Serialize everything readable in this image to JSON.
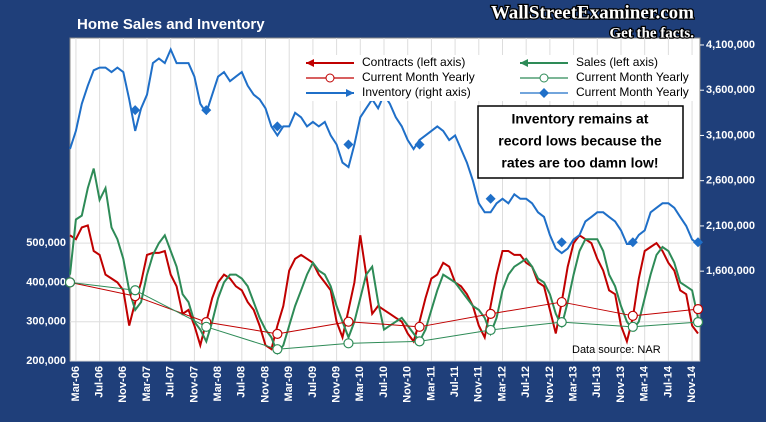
{
  "chart_data": {
    "type": "line",
    "title": "Home Sales and Inventory",
    "watermark": [
      "WallStreetExaminer.com",
      "Get the facts."
    ],
    "annotation": [
      "Inventory remains at",
      "record lows because the",
      "rates are too damn low!"
    ],
    "source": "Data source: NAR",
    "categories": [
      null,
      "Mar-06",
      null,
      null,
      null,
      "Jul-06",
      null,
      null,
      null,
      "Nov-06",
      null,
      null,
      null,
      "Mar-07",
      null,
      null,
      null,
      "Jul-07",
      null,
      null,
      null,
      "Nov-07",
      null,
      null,
      null,
      "Mar-08",
      null,
      null,
      null,
      "Jul-08",
      null,
      null,
      null,
      "Nov-08",
      null,
      null,
      null,
      "Mar-09",
      null,
      null,
      null,
      "Jul-09",
      null,
      null,
      null,
      "Nov-09",
      null,
      null,
      null,
      "Mar-10",
      null,
      null,
      null,
      "Jul-10",
      null,
      null,
      null,
      "Nov-10",
      null,
      null,
      null,
      "Mar-11",
      null,
      null,
      null,
      "Jul-11",
      null,
      null,
      null,
      "Nov-11",
      null,
      null,
      null,
      "Mar-12",
      null,
      null,
      null,
      "Jul-12",
      null,
      null,
      null,
      "Nov-12",
      null,
      null,
      null,
      "Mar-13",
      null,
      null,
      null,
      "Jul-13",
      null,
      null,
      null,
      "Nov-13",
      null,
      null,
      null,
      "Mar-14",
      null,
      null,
      null,
      "Jul-14",
      null,
      null,
      null,
      "Nov-14",
      null
    ],
    "ylim": [
      200000,
      1022000
    ],
    "yticks": [
      {
        "value": 200000,
        "label": "200,000"
      },
      {
        "value": 300000,
        "label": "300,000"
      },
      {
        "value": 400000,
        "label": "400,000"
      },
      {
        "value": 500000,
        "label": "500,000"
      }
    ],
    "y2lim": [
      607000,
      4177000
    ],
    "y2ticks": [
      {
        "value": 1600000,
        "label": "1,600,000"
      },
      {
        "value": 2100000,
        "label": "2,100,000"
      },
      {
        "value": 2600000,
        "label": "2,600,000"
      },
      {
        "value": 3100000,
        "label": "3,100,000"
      },
      {
        "value": 3600000,
        "label": "3,600,000"
      },
      {
        "value": 4100000,
        "label": "4,100,000"
      }
    ],
    "grid": true,
    "legend": "top-right",
    "series": [
      {
        "name": "Contracts (left axis)",
        "color": "#c00000",
        "axis": "y",
        "values": [
          520000,
          510000,
          540000,
          545000,
          480000,
          470000,
          420000,
          410000,
          400000,
          380000,
          290000,
          350000,
          400000,
          470000,
          475000,
          475000,
          480000,
          420000,
          390000,
          320000,
          330000,
          290000,
          240000,
          300000,
          360000,
          400000,
          420000,
          410000,
          390000,
          380000,
          350000,
          330000,
          290000,
          240000,
          230000,
          290000,
          340000,
          430000,
          460000,
          470000,
          460000,
          450000,
          420000,
          400000,
          380000,
          300000,
          260000,
          330000,
          400000,
          520000,
          420000,
          320000,
          340000,
          330000,
          320000,
          310000,
          300000,
          270000,
          250000,
          300000,
          360000,
          410000,
          420000,
          450000,
          440000,
          400000,
          390000,
          370000,
          340000,
          290000,
          260000,
          340000,
          420000,
          480000,
          480000,
          470000,
          470000,
          450000,
          440000,
          400000,
          390000,
          330000,
          270000,
          350000,
          440000,
          500000,
          520000,
          510000,
          500000,
          460000,
          430000,
          380000,
          370000,
          290000,
          250000,
          310000,
          410000,
          480000,
          490000,
          500000,
          480000,
          450000,
          430000,
          380000,
          370000,
          290000,
          270000
        ]
      },
      {
        "name": "Sales (left axis)",
        "color": "#2e8b57",
        "axis": "y",
        "values": [
          420000,
          560000,
          570000,
          640000,
          690000,
          610000,
          640000,
          540000,
          510000,
          460000,
          380000,
          330000,
          350000,
          420000,
          470000,
          500000,
          520000,
          480000,
          440000,
          370000,
          350000,
          300000,
          280000,
          250000,
          300000,
          360000,
          400000,
          420000,
          420000,
          410000,
          390000,
          350000,
          310000,
          280000,
          260000,
          220000,
          240000,
          290000,
          340000,
          380000,
          420000,
          450000,
          430000,
          420000,
          390000,
          340000,
          300000,
          260000,
          300000,
          360000,
          420000,
          440000,
          350000,
          280000,
          290000,
          300000,
          310000,
          290000,
          270000,
          250000,
          280000,
          330000,
          380000,
          420000,
          410000,
          400000,
          380000,
          360000,
          340000,
          330000,
          310000,
          270000,
          310000,
          380000,
          420000,
          440000,
          450000,
          460000,
          440000,
          410000,
          400000,
          370000,
          320000,
          290000,
          350000,
          420000,
          480000,
          510000,
          510000,
          510000,
          480000,
          420000,
          390000,
          340000,
          300000,
          280000,
          300000,
          360000,
          420000,
          470000,
          490000,
          480000,
          450000,
          400000,
          390000,
          380000,
          310000
        ]
      },
      {
        "name": "Current Month Yearly",
        "color": "#c00000",
        "axis": "y",
        "marker": "circle",
        "line": true,
        "values": [
          400000,
          null,
          null,
          null,
          null,
          null,
          null,
          null,
          null,
          null,
          null,
          365000,
          null,
          null,
          null,
          null,
          null,
          null,
          null,
          null,
          null,
          null,
          null,
          299000,
          null,
          null,
          null,
          null,
          null,
          null,
          null,
          null,
          null,
          null,
          null,
          269000,
          null,
          null,
          null,
          null,
          null,
          null,
          null,
          null,
          null,
          null,
          null,
          300000,
          null,
          null,
          null,
          null,
          null,
          null,
          null,
          null,
          null,
          null,
          null,
          287000,
          null,
          null,
          null,
          null,
          null,
          null,
          null,
          null,
          null,
          null,
          null,
          320000,
          null,
          null,
          null,
          null,
          null,
          null,
          null,
          null,
          null,
          null,
          null,
          350000,
          null,
          null,
          null,
          null,
          null,
          null,
          null,
          null,
          null,
          null,
          null,
          315000,
          null,
          null,
          null,
          null,
          null,
          null,
          null,
          null,
          null,
          null,
          332000
        ]
      },
      {
        "name": "Current Month Yearly",
        "color": "#2e8b57",
        "axis": "y",
        "marker": "circle",
        "line": true,
        "values": [
          400000,
          null,
          null,
          null,
          null,
          null,
          null,
          null,
          null,
          null,
          null,
          380000,
          null,
          null,
          null,
          null,
          null,
          null,
          null,
          null,
          null,
          null,
          null,
          287000,
          null,
          null,
          null,
          null,
          null,
          null,
          null,
          null,
          null,
          null,
          null,
          230000,
          null,
          null,
          null,
          null,
          null,
          null,
          null,
          null,
          null,
          null,
          null,
          245000,
          null,
          null,
          null,
          null,
          null,
          null,
          null,
          null,
          null,
          null,
          null,
          250000,
          null,
          null,
          null,
          null,
          null,
          null,
          null,
          null,
          null,
          null,
          null,
          279000,
          null,
          null,
          null,
          null,
          null,
          null,
          null,
          null,
          null,
          null,
          null,
          299000,
          null,
          null,
          null,
          null,
          null,
          null,
          null,
          null,
          null,
          null,
          null,
          287000,
          null,
          null,
          null,
          null,
          null,
          null,
          null,
          null,
          null,
          null,
          299000
        ]
      },
      {
        "name": "Inventory (right axis)",
        "color": "#1f6fc8",
        "axis": "y2",
        "values": [
          2950000,
          3150000,
          3450000,
          3650000,
          3820000,
          3850000,
          3850000,
          3800000,
          3850000,
          3800000,
          3500000,
          3150000,
          3400000,
          3550000,
          3900000,
          3950000,
          3900000,
          4050000,
          3900000,
          3900000,
          3900000,
          3750000,
          3450000,
          3350000,
          3550000,
          3750000,
          3800000,
          3700000,
          3750000,
          3800000,
          3650000,
          3550000,
          3500000,
          3400000,
          3200000,
          3100000,
          3200000,
          3200000,
          3350000,
          3300000,
          3200000,
          3250000,
          3200000,
          3250000,
          3100000,
          3000000,
          2800000,
          2750000,
          3000000,
          3300000,
          3400000,
          3500000,
          3400000,
          3550000,
          3450000,
          3300000,
          3200000,
          3050000,
          2950000,
          3050000,
          3100000,
          3150000,
          3200000,
          3150000,
          3050000,
          3100000,
          2950000,
          2800000,
          2600000,
          2350000,
          2250000,
          2250000,
          2350000,
          2400000,
          2350000,
          2450000,
          2400000,
          2400000,
          2350000,
          2250000,
          2200000,
          2000000,
          1850000,
          1800000,
          1850000,
          1950000,
          2000000,
          2150000,
          2200000,
          2250000,
          2250000,
          2200000,
          2150000,
          2050000,
          1900000,
          1900000,
          2000000,
          2050000,
          2250000,
          2300000,
          2350000,
          2350000,
          2300000,
          2200000,
          2100000,
          1950000,
          1900000
        ]
      },
      {
        "name": "Current Month Yearly",
        "color": "#1f6fc8",
        "axis": "y2",
        "marker": "diamond",
        "line": false,
        "values": [
          null,
          null,
          null,
          null,
          null,
          null,
          null,
          null,
          null,
          null,
          null,
          3380000,
          null,
          null,
          null,
          null,
          null,
          null,
          null,
          null,
          null,
          null,
          null,
          3380000,
          null,
          null,
          null,
          null,
          null,
          null,
          null,
          null,
          null,
          null,
          null,
          3200000,
          null,
          null,
          null,
          null,
          null,
          null,
          null,
          null,
          null,
          null,
          null,
          3000000,
          null,
          null,
          null,
          null,
          null,
          null,
          null,
          null,
          null,
          null,
          null,
          3000000,
          null,
          null,
          null,
          null,
          null,
          null,
          null,
          null,
          null,
          null,
          null,
          2400000,
          null,
          null,
          null,
          null,
          null,
          null,
          null,
          null,
          null,
          null,
          null,
          1920000,
          null,
          null,
          null,
          null,
          null,
          null,
          null,
          null,
          null,
          null,
          null,
          1920000,
          null,
          null,
          null,
          null,
          null,
          null,
          null,
          null,
          null,
          null,
          1920000
        ]
      }
    ]
  }
}
